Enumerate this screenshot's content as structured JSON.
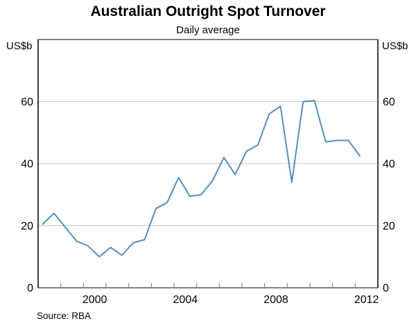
{
  "chart_data": {
    "type": "line",
    "title": "Australian Outright Spot Turnover",
    "subtitle": "Daily average",
    "unit_left": "US$b",
    "unit_right": "US$b",
    "source": "Source: RBA",
    "xlabel": "",
    "ylabel": "US$b",
    "xlim": [
      1998,
      2013
    ],
    "ylim": [
      0,
      80
    ],
    "yticks": [
      0,
      20,
      40,
      60
    ],
    "xtick_years": [
      1999,
      2000,
      2001,
      2002,
      2003,
      2004,
      2005,
      2006,
      2007,
      2008,
      2009,
      2010,
      2011,
      2012
    ],
    "xtick_labels": [
      2000,
      2004,
      2008,
      2012
    ],
    "grid": "horizontal",
    "legend": "none",
    "frequency": "semiannual",
    "x_start": 1998.2,
    "x_step": 0.5,
    "line_color": "#4e8ecb",
    "gridline_color": "#c9c9c9",
    "tick_color": "#7a7a7a",
    "axis_color": "#000000",
    "series": [
      {
        "name": "Daily average outright spot turnover (US$b)",
        "periods": [
          "1998 H1",
          "1998 H2",
          "1999 H1",
          "1999 H2",
          "2000 H1",
          "2000 H2",
          "2001 H1",
          "2001 H2",
          "2002 H1",
          "2002 H2",
          "2003 H1",
          "2003 H2",
          "2004 H1",
          "2004 H2",
          "2005 H1",
          "2005 H2",
          "2006 H1",
          "2006 H2",
          "2007 H1",
          "2007 H2",
          "2008 H1",
          "2008 H2",
          "2009 H1",
          "2009 H2",
          "2010 H1",
          "2010 H2",
          "2011 H1",
          "2011 H2",
          "2012 H1"
        ],
        "values": [
          20.5,
          24,
          19.5,
          15,
          13.5,
          10,
          13,
          10.5,
          14.5,
          15.5,
          25.5,
          27.5,
          35.5,
          29.5,
          30,
          34.5,
          42,
          36.5,
          44,
          46,
          56,
          58.5,
          34,
          60,
          60.3,
          47,
          47.5,
          47.5,
          42.5
        ]
      }
    ]
  }
}
